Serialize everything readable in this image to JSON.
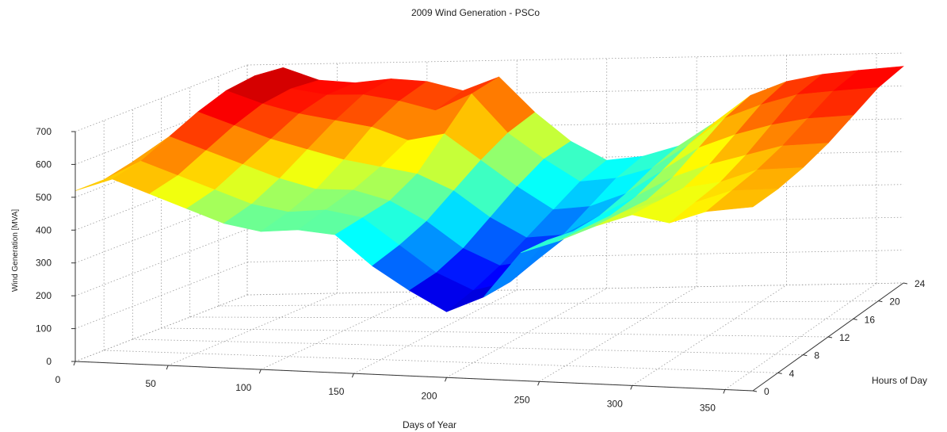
{
  "chart_data": {
    "type": "surface",
    "title": "2009 Wind Generation - PSCo",
    "xlabel": "Days of Year",
    "ylabel": "Hours of Day",
    "zlabel": "Wind Generation [MVA]",
    "x_ticks": [
      "0",
      "50",
      "100",
      "150",
      "200",
      "250",
      "300",
      "350"
    ],
    "y_ticks": [
      "0",
      "4",
      "8",
      "12",
      "16",
      "20",
      "24"
    ],
    "z_ticks": [
      "0",
      "100",
      "200",
      "300",
      "400",
      "500",
      "600",
      "700"
    ],
    "xlim": [
      0,
      365
    ],
    "ylim": [
      0,
      24
    ],
    "zlim": [
      0,
      700
    ],
    "grid": true,
    "colormap": "jet",
    "days": [
      0,
      20,
      40,
      60,
      80,
      100,
      120,
      140,
      160,
      180,
      200,
      220,
      240,
      260,
      280,
      300,
      320,
      340,
      365
    ],
    "hours": [
      0,
      4,
      8,
      12,
      16,
      20,
      24
    ],
    "values": [
      [
        520,
        520,
        540,
        560,
        580,
        600,
        600
      ],
      [
        560,
        580,
        620,
        660,
        690,
        700,
        690
      ],
      [
        520,
        540,
        580,
        620,
        650,
        660,
        650
      ],
      [
        480,
        500,
        540,
        580,
        620,
        640,
        640
      ],
      [
        440,
        460,
        500,
        550,
        600,
        640,
        650
      ],
      [
        420,
        440,
        470,
        520,
        580,
        620,
        640
      ],
      [
        430,
        450,
        470,
        500,
        540,
        590,
        610
      ],
      [
        420,
        430,
        440,
        480,
        560,
        640,
        650
      ],
      [
        330,
        350,
        380,
        430,
        480,
        520,
        540
      ],
      [
        260,
        270,
        300,
        350,
        400,
        440,
        450
      ],
      [
        200,
        220,
        250,
        290,
        330,
        370,
        390
      ],
      [
        250,
        250,
        270,
        300,
        340,
        380,
        400
      ],
      [
        390,
        380,
        360,
        360,
        380,
        410,
        430
      ],
      [
        430,
        420,
        410,
        420,
        450,
        480,
        500
      ],
      [
        480,
        470,
        460,
        480,
        520,
        560,
        580
      ],
      [
        520,
        510,
        500,
        520,
        560,
        600,
        620
      ],
      [
        500,
        510,
        520,
        550,
        590,
        630,
        640
      ],
      [
        540,
        550,
        560,
        580,
        610,
        640,
        650
      ],
      [
        560,
        560,
        570,
        590,
        620,
        650,
        660
      ]
    ]
  }
}
